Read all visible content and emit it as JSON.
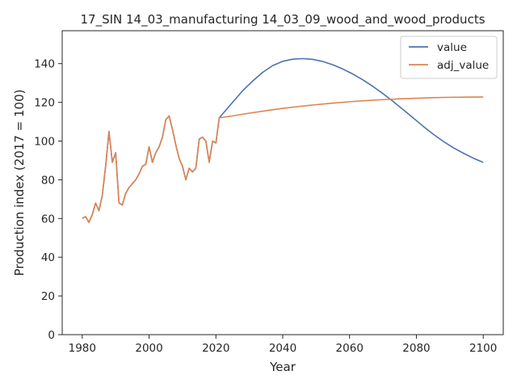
{
  "chart_data": {
    "type": "line",
    "title": "17_SIN 14_03_manufacturing 14_03_09_wood_and_wood_products",
    "xlabel": "Year",
    "ylabel": "Production index (2017 = 100)",
    "xlim": [
      1974,
      2106
    ],
    "ylim": [
      0,
      157
    ],
    "xticks": [
      1980,
      2000,
      2020,
      2040,
      2060,
      2080,
      2100
    ],
    "yticks": [
      0,
      20,
      40,
      60,
      80,
      100,
      120,
      140
    ],
    "grid": false,
    "legend_position": "top-right",
    "series": [
      {
        "name": "value",
        "color": "#4c72b0",
        "points": [
          [
            1980,
            60
          ],
          [
            1981,
            61
          ],
          [
            1982,
            58
          ],
          [
            1983,
            62
          ],
          [
            1984,
            68
          ],
          [
            1985,
            64
          ],
          [
            1986,
            72
          ],
          [
            1987,
            87
          ],
          [
            1988,
            105
          ],
          [
            1989,
            89
          ],
          [
            1990,
            94
          ],
          [
            1991,
            68
          ],
          [
            1992,
            67
          ],
          [
            1993,
            73
          ],
          [
            1994,
            76
          ],
          [
            1995,
            78
          ],
          [
            1996,
            80
          ],
          [
            1997,
            83
          ],
          [
            1998,
            87
          ],
          [
            1999,
            88
          ],
          [
            2000,
            97
          ],
          [
            2001,
            89
          ],
          [
            2002,
            94
          ],
          [
            2003,
            97
          ],
          [
            2004,
            102
          ],
          [
            2005,
            111
          ],
          [
            2006,
            113
          ],
          [
            2007,
            106
          ],
          [
            2008,
            98
          ],
          [
            2009,
            91
          ],
          [
            2010,
            87
          ],
          [
            2011,
            80
          ],
          [
            2012,
            86
          ],
          [
            2013,
            84
          ],
          [
            2014,
            86
          ],
          [
            2015,
            101
          ],
          [
            2016,
            102
          ],
          [
            2017,
            100
          ],
          [
            2018,
            89
          ],
          [
            2019,
            100
          ],
          [
            2020,
            99
          ],
          [
            2021,
            112
          ],
          [
            2022,
            114
          ],
          [
            2025,
            120
          ],
          [
            2028,
            126
          ],
          [
            2031,
            131
          ],
          [
            2034,
            135.5
          ],
          [
            2037,
            139
          ],
          [
            2040,
            141.2
          ],
          [
            2043,
            142.3
          ],
          [
            2046,
            142.6
          ],
          [
            2049,
            142.2
          ],
          [
            2052,
            141.1
          ],
          [
            2055,
            139.4
          ],
          [
            2058,
            137.2
          ],
          [
            2061,
            134.6
          ],
          [
            2064,
            131.6
          ],
          [
            2067,
            128.2
          ],
          [
            2070,
            124.5
          ],
          [
            2073,
            120.5
          ],
          [
            2076,
            116.3
          ],
          [
            2079,
            112
          ],
          [
            2082,
            107.7
          ],
          [
            2085,
            103.6
          ],
          [
            2088,
            99.9
          ],
          [
            2091,
            96.6
          ],
          [
            2094,
            93.8
          ],
          [
            2097,
            91.2
          ],
          [
            2100,
            89
          ]
        ]
      },
      {
        "name": "adj_value",
        "color": "#dd8452",
        "points": [
          [
            1980,
            60
          ],
          [
            1981,
            61
          ],
          [
            1982,
            58
          ],
          [
            1983,
            62
          ],
          [
            1984,
            68
          ],
          [
            1985,
            64
          ],
          [
            1986,
            72
          ],
          [
            1987,
            87
          ],
          [
            1988,
            105
          ],
          [
            1989,
            89
          ],
          [
            1990,
            94
          ],
          [
            1991,
            68
          ],
          [
            1992,
            67
          ],
          [
            1993,
            73
          ],
          [
            1994,
            76
          ],
          [
            1995,
            78
          ],
          [
            1996,
            80
          ],
          [
            1997,
            83
          ],
          [
            1998,
            87
          ],
          [
            1999,
            88
          ],
          [
            2000,
            97
          ],
          [
            2001,
            89
          ],
          [
            2002,
            94
          ],
          [
            2003,
            97
          ],
          [
            2004,
            102
          ],
          [
            2005,
            111
          ],
          [
            2006,
            113
          ],
          [
            2007,
            106
          ],
          [
            2008,
            98
          ],
          [
            2009,
            91
          ],
          [
            2010,
            87
          ],
          [
            2011,
            80
          ],
          [
            2012,
            86
          ],
          [
            2013,
            84
          ],
          [
            2014,
            86
          ],
          [
            2015,
            101
          ],
          [
            2016,
            102
          ],
          [
            2017,
            100
          ],
          [
            2018,
            89
          ],
          [
            2019,
            100
          ],
          [
            2020,
            99
          ],
          [
            2021,
            112
          ],
          [
            2025,
            113
          ],
          [
            2030,
            114.4
          ],
          [
            2035,
            115.7
          ],
          [
            2040,
            116.9
          ],
          [
            2045,
            117.9
          ],
          [
            2050,
            118.8
          ],
          [
            2055,
            119.6
          ],
          [
            2060,
            120.3
          ],
          [
            2065,
            120.9
          ],
          [
            2070,
            121.4
          ],
          [
            2075,
            121.8
          ],
          [
            2080,
            122.1
          ],
          [
            2085,
            122.4
          ],
          [
            2090,
            122.6
          ],
          [
            2095,
            122.7
          ],
          [
            2100,
            122.8
          ]
        ]
      }
    ]
  }
}
